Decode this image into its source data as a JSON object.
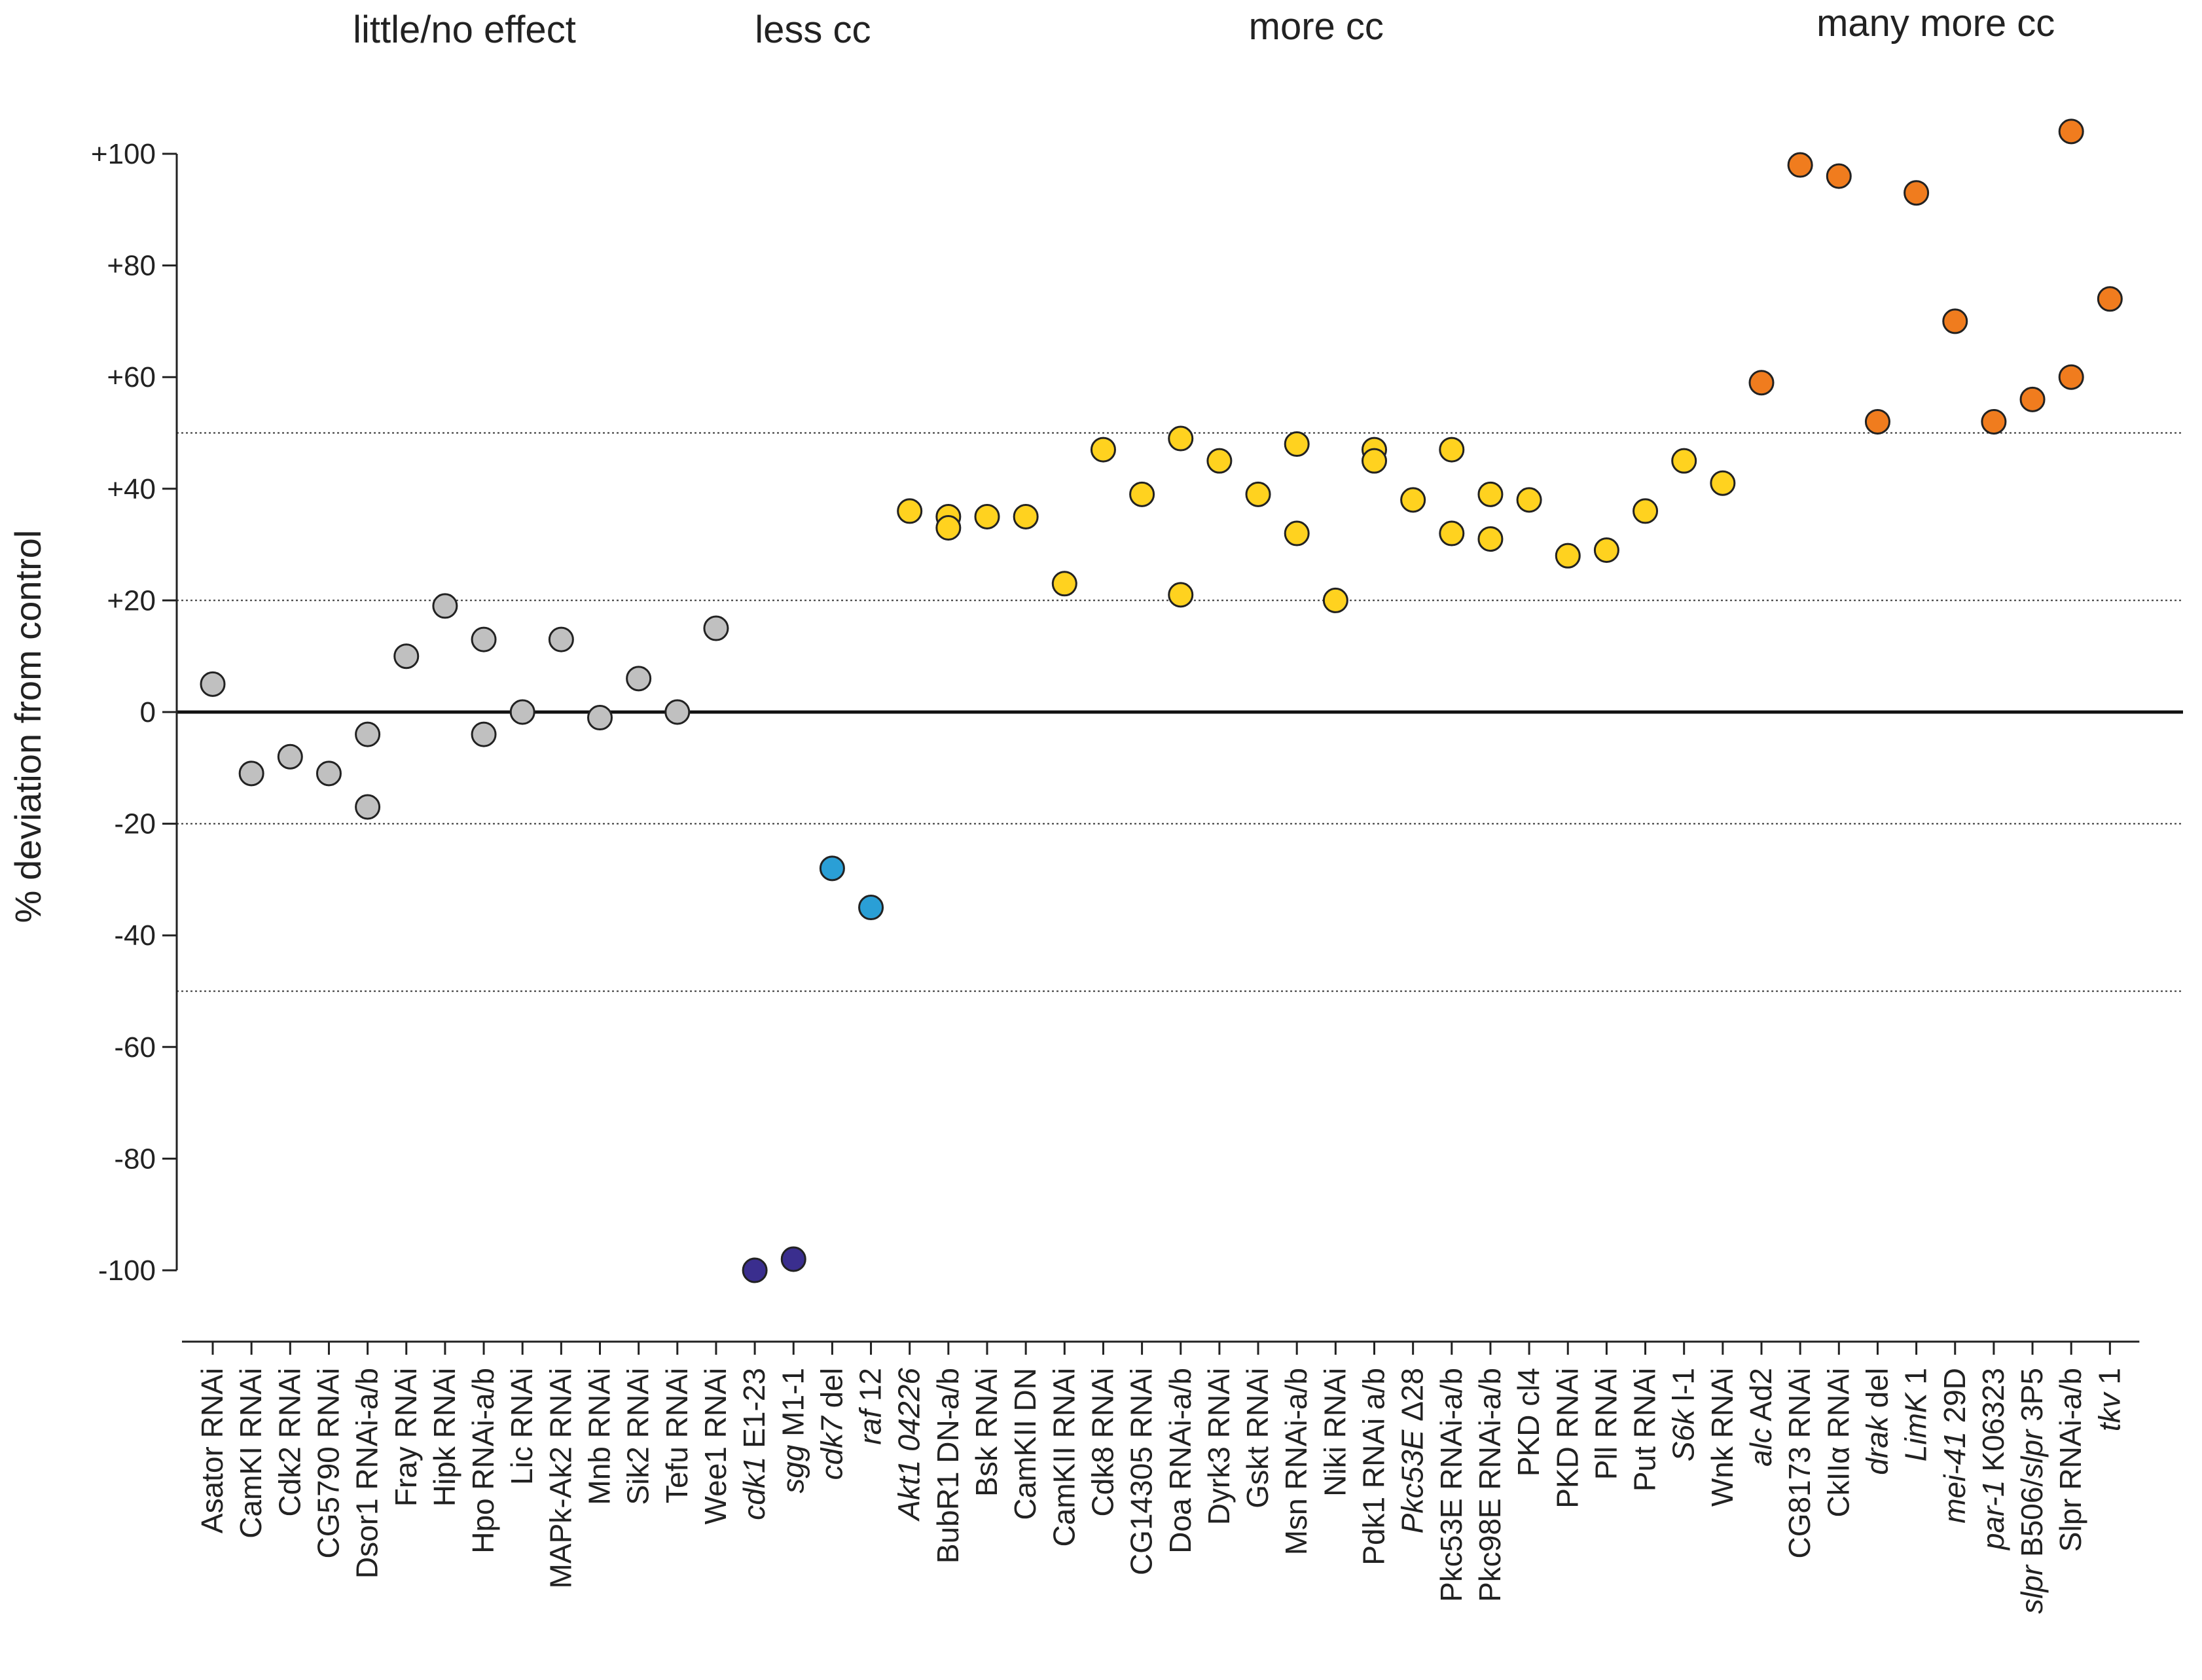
{
  "chart_data": {
    "type": "scatter",
    "ylabel": "% deviation from control",
    "ylim": [
      -110,
      110
    ],
    "yticks": [
      100,
      80,
      60,
      40,
      20,
      0,
      -20,
      -40,
      -60,
      -80,
      -100
    ],
    "ytick_labels": [
      "+100",
      "+80",
      "+60",
      "+40",
      "+20",
      "0",
      "-20",
      "-40",
      "-60",
      "-80",
      "-100"
    ],
    "threshold_lines": [
      50,
      20,
      -20,
      -50
    ],
    "colors": {
      "little": "#c0c0c0",
      "less_dark": "#3a2e8e",
      "less_light": "#2a9fd6",
      "more": "#ffd21f",
      "many": "#f07c1e"
    },
    "groups": [
      {
        "label": "little/no effect",
        "first": 0,
        "last": 13
      },
      {
        "label": "less cc",
        "first": 14,
        "last": 17
      },
      {
        "label": "more cc",
        "first": 18,
        "last": 39
      },
      {
        "label": "many more cc",
        "first": 40,
        "last": 49
      }
    ],
    "categories": [
      {
        "parts": [
          {
            "t": "Asator RNAi",
            "i": false
          }
        ],
        "values": [
          5
        ],
        "color": "little"
      },
      {
        "parts": [
          {
            "t": "CamKI RNAi",
            "i": false
          }
        ],
        "values": [
          -11
        ],
        "color": "little"
      },
      {
        "parts": [
          {
            "t": "Cdk2 RNAi",
            "i": false
          }
        ],
        "values": [
          -8
        ],
        "color": "little"
      },
      {
        "parts": [
          {
            "t": "CG5790 RNAi",
            "i": false
          }
        ],
        "values": [
          -11
        ],
        "color": "little"
      },
      {
        "parts": [
          {
            "t": "Dsor1 RNAi-a/b",
            "i": false
          }
        ],
        "values": [
          -4,
          -17
        ],
        "color": "little"
      },
      {
        "parts": [
          {
            "t": "Fray RNAi",
            "i": false
          }
        ],
        "values": [
          10
        ],
        "color": "little"
      },
      {
        "parts": [
          {
            "t": "Hipk RNAi",
            "i": false
          }
        ],
        "values": [
          19
        ],
        "color": "little"
      },
      {
        "parts": [
          {
            "t": "Hpo RNAi-a/b",
            "i": false
          }
        ],
        "values": [
          13,
          -4
        ],
        "color": "little"
      },
      {
        "parts": [
          {
            "t": "Lic RNAi",
            "i": false
          }
        ],
        "values": [
          0
        ],
        "color": "little"
      },
      {
        "parts": [
          {
            "t": "MAPk-Ak2 RNAi",
            "i": false
          }
        ],
        "values": [
          13
        ],
        "color": "little"
      },
      {
        "parts": [
          {
            "t": "Mnb RNAi",
            "i": false
          }
        ],
        "values": [
          -1
        ],
        "color": "little"
      },
      {
        "parts": [
          {
            "t": "Sik2 RNAi",
            "i": false
          }
        ],
        "values": [
          6
        ],
        "color": "little"
      },
      {
        "parts": [
          {
            "t": "Tefu RNAi",
            "i": false
          }
        ],
        "values": [
          0
        ],
        "color": "little"
      },
      {
        "parts": [
          {
            "t": "Wee1 RNAi",
            "i": false
          }
        ],
        "values": [
          15
        ],
        "color": "little"
      },
      {
        "parts": [
          {
            "t": "cdk1",
            "i": true
          },
          {
            "t": " E1-23",
            "i": false
          }
        ],
        "values": [
          -100
        ],
        "color": "less_dark"
      },
      {
        "parts": [
          {
            "t": "sgg",
            "i": true
          },
          {
            "t": " M1-1",
            "i": false
          }
        ],
        "values": [
          -98
        ],
        "color": "less_dark"
      },
      {
        "parts": [
          {
            "t": "cdk7",
            "i": true
          },
          {
            "t": " del",
            "i": false
          }
        ],
        "values": [
          -28
        ],
        "color": "less_light"
      },
      {
        "parts": [
          {
            "t": "raf",
            "i": true
          },
          {
            "t": " 12",
            "i": false
          }
        ],
        "values": [
          -35
        ],
        "color": "less_light"
      },
      {
        "parts": [
          {
            "t": "Akt1 04226",
            "i": true
          }
        ],
        "values": [
          36
        ],
        "color": "more"
      },
      {
        "parts": [
          {
            "t": "BubR1 DN-a/b",
            "i": false
          }
        ],
        "values": [
          35,
          33
        ],
        "color": "more"
      },
      {
        "parts": [
          {
            "t": "Bsk RNAi",
            "i": false
          }
        ],
        "values": [
          35
        ],
        "color": "more"
      },
      {
        "parts": [
          {
            "t": "CamKII DN",
            "i": false
          }
        ],
        "values": [
          35
        ],
        "color": "more"
      },
      {
        "parts": [
          {
            "t": "CamKII RNAi",
            "i": false
          }
        ],
        "values": [
          23
        ],
        "color": "more"
      },
      {
        "parts": [
          {
            "t": "Cdk8 RNAi",
            "i": false
          }
        ],
        "values": [
          47
        ],
        "color": "more"
      },
      {
        "parts": [
          {
            "t": "CG14305 RNAi",
            "i": false
          }
        ],
        "values": [
          39
        ],
        "color": "more"
      },
      {
        "parts": [
          {
            "t": "Doa RNAi-a/b",
            "i": false
          }
        ],
        "values": [
          49,
          21
        ],
        "color": "more"
      },
      {
        "parts": [
          {
            "t": "Dyrk3 RNAi",
            "i": false
          }
        ],
        "values": [
          45
        ],
        "color": "more"
      },
      {
        "parts": [
          {
            "t": "Gskt RNAi",
            "i": false
          }
        ],
        "values": [
          39
        ],
        "color": "more"
      },
      {
        "parts": [
          {
            "t": "Msn RNAi-a/b",
            "i": false
          }
        ],
        "values": [
          48,
          32
        ],
        "color": "more"
      },
      {
        "parts": [
          {
            "t": "Niki RNAi",
            "i": false
          }
        ],
        "values": [
          20
        ],
        "color": "more"
      },
      {
        "parts": [
          {
            "t": "Pdk1 RNAi a/b",
            "i": false
          }
        ],
        "values": [
          47,
          45
        ],
        "color": "more"
      },
      {
        "parts": [
          {
            "t": "Pkc53E",
            "i": true
          },
          {
            "t": " Δ28",
            "i": false
          }
        ],
        "values": [
          38
        ],
        "color": "more"
      },
      {
        "parts": [
          {
            "t": "Pkc53E RNAi-a/b",
            "i": false
          }
        ],
        "values": [
          47,
          32
        ],
        "color": "more"
      },
      {
        "parts": [
          {
            "t": "Pkc98E RNAi-a/b",
            "i": false
          }
        ],
        "values": [
          39,
          31
        ],
        "color": "more"
      },
      {
        "parts": [
          {
            "t": "PKD cl4",
            "i": false
          }
        ],
        "values": [
          38
        ],
        "color": "more"
      },
      {
        "parts": [
          {
            "t": "PKD RNAi",
            "i": false
          }
        ],
        "values": [
          28
        ],
        "color": "more"
      },
      {
        "parts": [
          {
            "t": "Pll RNAi",
            "i": false
          }
        ],
        "values": [
          29
        ],
        "color": "more"
      },
      {
        "parts": [
          {
            "t": "Put RNAi",
            "i": false
          }
        ],
        "values": [
          36
        ],
        "color": "more"
      },
      {
        "parts": [
          {
            "t": "S6k",
            "i": true
          },
          {
            "t": " l-1",
            "i": false
          }
        ],
        "values": [
          45
        ],
        "color": "more"
      },
      {
        "parts": [
          {
            "t": "Wnk RNAi",
            "i": false
          }
        ],
        "values": [
          41
        ],
        "color": "more"
      },
      {
        "parts": [
          {
            "t": "alc",
            "i": true
          },
          {
            "t": " Ad2",
            "i": false
          }
        ],
        "values": [
          59
        ],
        "color": "many"
      },
      {
        "parts": [
          {
            "t": "CG8173 RNAi",
            "i": false
          }
        ],
        "values": [
          98
        ],
        "color": "many"
      },
      {
        "parts": [
          {
            "t": "CkIIα RNAi",
            "i": false
          }
        ],
        "values": [
          96
        ],
        "color": "many"
      },
      {
        "parts": [
          {
            "t": "drak",
            "i": true
          },
          {
            "t": " del",
            "i": false
          }
        ],
        "values": [
          52
        ],
        "color": "many"
      },
      {
        "parts": [
          {
            "t": "LimK",
            "i": true
          },
          {
            "t": " 1",
            "i": false
          }
        ],
        "values": [
          93
        ],
        "color": "many"
      },
      {
        "parts": [
          {
            "t": "mei-41",
            "i": true
          },
          {
            "t": " 29D",
            "i": false
          }
        ],
        "values": [
          70
        ],
        "color": "many"
      },
      {
        "parts": [
          {
            "t": "par-1",
            "i": true
          },
          {
            "t": " K06323",
            "i": false
          }
        ],
        "values": [
          52
        ],
        "color": "many"
      },
      {
        "parts": [
          {
            "t": "slpr",
            "i": true
          },
          {
            "t": " B506/",
            "i": false
          },
          {
            "t": "slpr",
            "i": true
          },
          {
            "t": " 3P5",
            "i": false
          }
        ],
        "values": [
          56
        ],
        "color": "many"
      },
      {
        "parts": [
          {
            "t": "Slpr RNAi-a/b",
            "i": false
          }
        ],
        "values": [
          104,
          60
        ],
        "color": "many"
      },
      {
        "parts": [
          {
            "t": "tkv",
            "i": true
          },
          {
            "t": " 1",
            "i": false
          }
        ],
        "values": [
          74
        ],
        "color": "many"
      }
    ]
  }
}
